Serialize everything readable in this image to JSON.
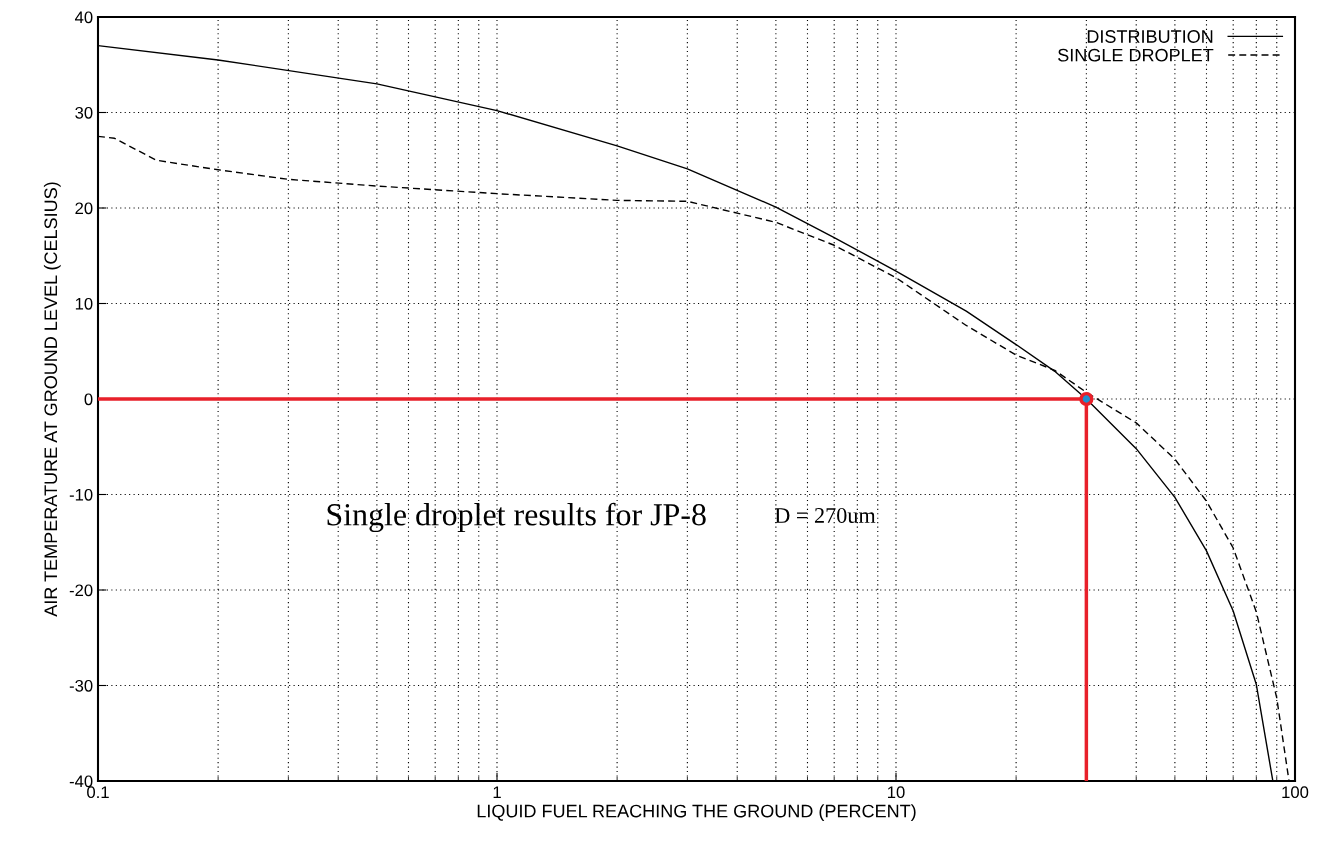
{
  "chart_data": {
    "type": "line",
    "xlabel": "LIQUID FUEL REACHING THE GROUND (PERCENT)",
    "ylabel": "AIR TEMPERATURE AT GROUND LEVEL (CELSIUS)",
    "log": "x",
    "xlim": [
      0.1,
      100
    ],
    "xticks": [
      0.1,
      1,
      10,
      100
    ],
    "ylim": [
      -40,
      40
    ],
    "yticks": [
      -40,
      -30,
      -20,
      -10,
      0,
      10,
      20,
      30,
      40
    ],
    "grid": true,
    "legend": "top right",
    "series": [
      {
        "name": "DISTRIBUTION",
        "color": "#000000",
        "line_style": "solid",
        "x": [
          0.1,
          0.2,
          0.5,
          1,
          2,
          3,
          5,
          7,
          10,
          15,
          20,
          25,
          30,
          40,
          50,
          60,
          70,
          80,
          88
        ],
        "values": [
          37,
          35.5,
          33,
          30.2,
          26.5,
          24.1,
          20.1,
          16.9,
          13.4,
          9.2,
          5.7,
          2.9,
          0,
          -5.2,
          -10.3,
          -15.9,
          -22.2,
          -29.9,
          -40
        ]
      },
      {
        "name": "SINGLE DROPLET",
        "color": "#000000",
        "line_style": "dashed",
        "x": [
          0.1,
          0.11,
          0.14,
          0.2,
          0.3,
          0.5,
          1,
          2,
          3,
          5,
          7,
          10,
          15,
          20,
          25,
          30,
          40,
          50,
          60,
          70,
          80,
          90,
          96.6
        ],
        "values": [
          27.5,
          27.3,
          25,
          24,
          23,
          22.3,
          21.5,
          20.8,
          20.7,
          18.5,
          16.1,
          12.7,
          7.7,
          4.6,
          3.0,
          0.7,
          -2.5,
          -6.3,
          -10.7,
          -15.6,
          -22.3,
          -31.3,
          -40
        ]
      },
      {
        "color": "#e8202a",
        "line_style": "solid",
        "x": [
          0.1,
          30,
          30
        ],
        "values": [
          0,
          0,
          -40
        ]
      },
      {
        "type": "scatter",
        "color": "#1e90d0",
        "marker": "circle",
        "x": [
          30
        ],
        "values": [
          0
        ]
      }
    ],
    "annotations": [
      "Single droplet results for JP-8",
      "D = 270um"
    ]
  }
}
